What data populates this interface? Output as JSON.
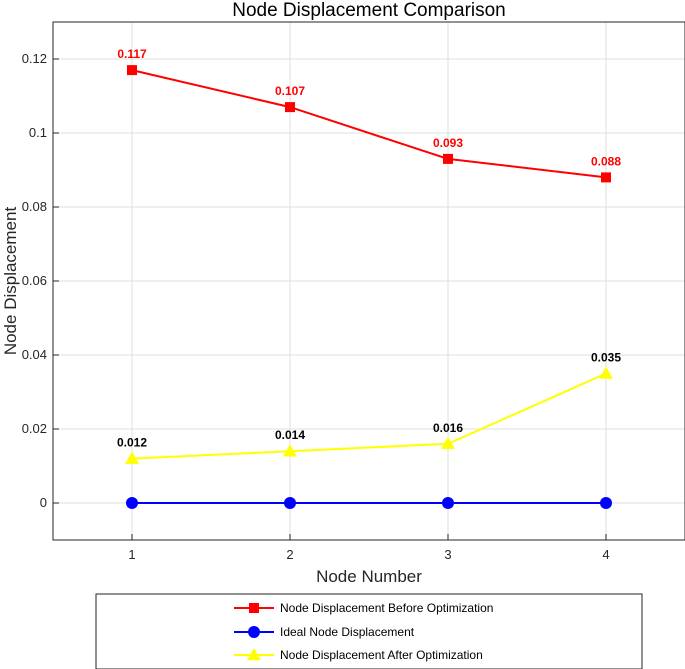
{
  "chart_data": {
    "type": "line",
    "title": "Node Displacement Comparison",
    "xlabel": "Node Number",
    "ylabel": "Node Displacement",
    "x": [
      1,
      2,
      3,
      4
    ],
    "x_ticks": [
      1,
      2,
      3,
      4
    ],
    "x_tick_labels": [
      "1",
      "2",
      "3",
      "4"
    ],
    "xlim": [
      0.5,
      4.5
    ],
    "ylim": [
      -0.01,
      0.13
    ],
    "y_ticks": [
      0,
      0.02,
      0.04,
      0.06,
      0.08,
      0.1,
      0.12
    ],
    "y_tick_labels": [
      "0",
      "0.02",
      "0.04",
      "0.06",
      "0.08",
      "0.1",
      "0.12"
    ],
    "grid": true,
    "legend_position": "bottom-outside",
    "series": [
      {
        "name": "Node Displacement Before Optimization",
        "values": [
          0.117,
          0.107,
          0.093,
          0.088
        ],
        "labels": [
          "0.117",
          "0.107",
          "0.093",
          "0.088"
        ],
        "color": "#ff0000",
        "label_color": "#ff0000",
        "marker": "square"
      },
      {
        "name": "Ideal Node Displacement",
        "values": [
          0,
          0,
          0,
          0
        ],
        "labels": [],
        "color": "#0000ff",
        "label_color": "#0000ff",
        "marker": "circle"
      },
      {
        "name": "Node Displacement After Optimization",
        "values": [
          0.012,
          0.014,
          0.016,
          0.035
        ],
        "labels": [
          "0.012",
          "0.014",
          "0.016",
          "0.035"
        ],
        "color": "#ffff00",
        "label_color": "#000000",
        "marker": "triangle"
      }
    ]
  }
}
